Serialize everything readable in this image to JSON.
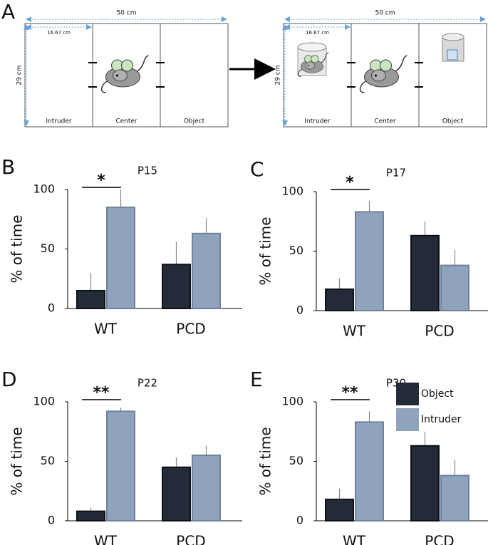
{
  "diagram": {
    "panel": "A",
    "arenas": [
      {
        "width": "50 cm",
        "height": "29 cm",
        "compartment_width": "16.67 cm",
        "compartments": [
          "Intruder",
          "Center",
          "Object"
        ]
      },
      {
        "width": "50 cm",
        "height": "29 cm",
        "compartment_width": "16.67 cm",
        "compartments": [
          "Intruder",
          "Center",
          "Object"
        ]
      }
    ]
  },
  "chart_data": [
    {
      "type": "bar",
      "panel": "B",
      "title": "P15",
      "ylabel": "% of time",
      "categories": [
        "WT",
        "PCD"
      ],
      "series": [
        {
          "name": "Object",
          "color": "#232b38",
          "values": [
            15,
            37
          ],
          "errors": [
            15,
            19
          ]
        },
        {
          "name": "Intruder",
          "color": "#8fa3bd",
          "values": [
            85,
            63
          ],
          "errors": [
            15,
            13
          ]
        }
      ],
      "ylim": [
        0,
        100
      ],
      "yticks": [
        0,
        50,
        100
      ],
      "annotation": "*",
      "legend": false
    },
    {
      "type": "bar",
      "panel": "C",
      "title": "P17",
      "ylabel": "% of time",
      "categories": [
        "WT",
        "PCD"
      ],
      "series": [
        {
          "name": "Object",
          "color": "#232b38",
          "values": [
            18,
            63
          ],
          "errors": [
            9,
            12
          ]
        },
        {
          "name": "Intruder",
          "color": "#8fa3bd",
          "values": [
            83,
            38
          ],
          "errors": [
            9,
            13
          ]
        }
      ],
      "ylim": [
        0,
        100
      ],
      "yticks": [
        0,
        50,
        100
      ],
      "annotation": "*",
      "legend": false
    },
    {
      "type": "bar",
      "panel": "D",
      "title": "P22",
      "ylabel": "% of time",
      "categories": [
        "WT",
        "PCD"
      ],
      "series": [
        {
          "name": "Object",
          "color": "#232b38",
          "values": [
            8,
            45
          ],
          "errors": [
            3,
            8
          ]
        },
        {
          "name": "Intruder",
          "color": "#8fa3bd",
          "values": [
            92,
            55
          ],
          "errors": [
            3,
            8
          ]
        }
      ],
      "ylim": [
        0,
        100
      ],
      "yticks": [
        0,
        50,
        100
      ],
      "annotation": "**",
      "legend": false
    },
    {
      "type": "bar",
      "panel": "E",
      "title": "P30",
      "ylabel": "% of time",
      "categories": [
        "WT",
        "PCD"
      ],
      "series": [
        {
          "name": "Object",
          "color": "#232b38",
          "values": [
            18,
            63
          ],
          "errors": [
            9,
            12
          ]
        },
        {
          "name": "Intruder",
          "color": "#8fa3bd",
          "values": [
            83,
            38
          ],
          "errors": [
            9,
            13
          ]
        }
      ],
      "ylim": [
        0,
        100
      ],
      "yticks": [
        0,
        50,
        100
      ],
      "annotation": "**",
      "legend": true
    }
  ]
}
